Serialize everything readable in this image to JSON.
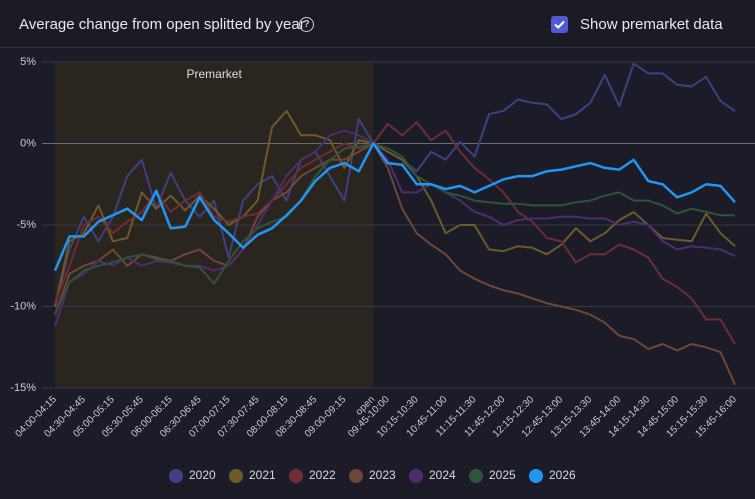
{
  "header": {
    "title": "Average change from open splitted by year",
    "help_icon": "?",
    "checkbox_label": "Show premarket data",
    "checkbox_checked": true
  },
  "chart_data": {
    "type": "line",
    "categories": [
      "04:00-04:15",
      null,
      "04:30-04:45",
      null,
      "05:00-05:15",
      null,
      "05:30-05:45",
      null,
      "06:00-06:15",
      null,
      "06:30-06:45",
      null,
      "07:00-07:15",
      null,
      "07:30-07:45",
      null,
      "08:00-08:15",
      null,
      "08:30-08:45",
      null,
      "09:00-09:15",
      null,
      "open",
      "09:45-10:00",
      null,
      "10:15-10:30",
      null,
      "10:45-11:00",
      null,
      "11:15-11:30",
      null,
      "11:45-12:00",
      null,
      "12:15-12:30",
      null,
      "12:45-13:00",
      null,
      "13:15-13:30",
      null,
      "13:45-14:00",
      null,
      "14:15-14:30",
      null,
      "14:45-15:00",
      null,
      "15:15-15:30",
      null,
      "15:45-16:00"
    ],
    "series": [
      {
        "name": "2020",
        "color": "#3d4180",
        "values": [
          -10,
          -6.5,
          -4.5,
          -6,
          -4.5,
          -2,
          -1,
          -4,
          -1.8,
          -3.5,
          -4.5,
          -3.5,
          -7,
          -3.5,
          -2.5,
          -2,
          -3.5,
          -1,
          -0.5,
          -2,
          -3.5,
          1.5,
          0,
          -0.5,
          -1,
          -1.7,
          -0.5,
          -1,
          0.1,
          -0.8,
          1.8,
          2,
          2.7,
          2.5,
          2.4,
          1.5,
          1.8,
          2.5,
          4.2,
          2.3,
          4.9,
          4.3,
          4.3,
          3.6,
          3.5,
          4.1,
          2.6,
          2
        ]
      },
      {
        "name": "2021",
        "color": "#6e5a28",
        "values": [
          -10,
          -6,
          -5.5,
          -3.8,
          -6,
          -5.8,
          -3,
          -4,
          -3.2,
          -4.1,
          -3.2,
          -4,
          -5,
          -4.5,
          -3.5,
          1,
          2,
          0.5,
          0.5,
          0.2,
          -1.5,
          0.2,
          0,
          -0.5,
          -1,
          -2,
          -3.5,
          -5.5,
          -5,
          -5,
          -6.5,
          -6.6,
          -6.3,
          -6.4,
          -6.8,
          -6.2,
          -5.2,
          -6,
          -5.5,
          -4.7,
          -4.2,
          -5,
          -5.8,
          -5.9,
          -6,
          -4.3,
          -5.5,
          -6.3
        ]
      },
      {
        "name": "2022",
        "color": "#6e2c36",
        "values": [
          -9.8,
          -7.5,
          -5,
          -4.5,
          -5.5,
          -4.8,
          -4.2,
          -3,
          -4.2,
          -3.5,
          -3,
          -4.5,
          -4.8,
          -4.5,
          -4.3,
          -3.5,
          -2.5,
          -1.5,
          -1,
          -0.5,
          0,
          -0.3,
          0,
          1.2,
          0.5,
          1.3,
          0.2,
          0.8,
          -0.5,
          -1.5,
          -2.2,
          -3,
          -4.2,
          -4.8,
          -5.8,
          -6,
          -7.3,
          -6.8,
          -6.8,
          -6.2,
          -6.5,
          -7,
          -8.3,
          -8.8,
          -9.5,
          -10.8,
          -10.8,
          -12.3
        ]
      },
      {
        "name": "2023",
        "color": "#6e4738",
        "values": [
          -10.5,
          -8,
          -7.5,
          -7.2,
          -6.5,
          -7.5,
          -6.8,
          -7,
          -7.2,
          -6.8,
          -6.5,
          -7.2,
          -7.5,
          -6.5,
          -4.5,
          -3.5,
          -3,
          -2,
          -1.5,
          -1,
          -1,
          -0.5,
          0,
          -1.5,
          -4,
          -5.5,
          -6.2,
          -6.8,
          -7.8,
          -8.3,
          -8.7,
          -9,
          -9.2,
          -9.5,
          -9.8,
          -10,
          -10.2,
          -10.5,
          -11,
          -11.8,
          -12,
          -12.6,
          -12.3,
          -12.7,
          -12.3,
          -12.5,
          -12.8,
          -14.8
        ]
      },
      {
        "name": "2024",
        "color": "#4d2c72",
        "values": [
          -11.2,
          -8.5,
          -8,
          -7.2,
          -7.5,
          -7,
          -7.5,
          -7.2,
          -7.3,
          -7.5,
          -7.5,
          -7.8,
          -7.5,
          -6.5,
          -5,
          -3.5,
          -2,
          -1,
          -0.5,
          0.5,
          0.8,
          0.5,
          0,
          -1,
          -3,
          -3,
          -2.5,
          -3,
          -3.5,
          -4.2,
          -4.5,
          -5,
          -4.7,
          -4.6,
          -4.6,
          -4.5,
          -4.5,
          -4.6,
          -4.6,
          -5,
          -4.8,
          -5,
          -6,
          -6.5,
          -6.3,
          -6.4,
          -6.5,
          -6.9
        ]
      },
      {
        "name": "2025",
        "color": "#2d5537",
        "values": [
          -10.5,
          -8.5,
          -7.8,
          -7.5,
          -7.3,
          -7,
          -6.8,
          -7.1,
          -7.2,
          -7.5,
          -7.6,
          -8.6,
          -7.2,
          -6,
          -5.2,
          -4.8,
          -4.5,
          -3.5,
          -2,
          -1,
          -0.3,
          -0.2,
          0,
          -0.3,
          -0.8,
          -2,
          -2.5,
          -3,
          -3.2,
          -3.5,
          -3.6,
          -3.7,
          -3.7,
          -3.8,
          -3.8,
          -3.8,
          -3.6,
          -3.5,
          -3.2,
          -3,
          -3.5,
          -3.5,
          -3.8,
          -4.3,
          -4,
          -4.2,
          -4.4,
          -4.4
        ]
      },
      {
        "name": "2026",
        "color": "#2196f3",
        "values": [
          -7.8,
          -5.7,
          -5.7,
          -4.8,
          -4.4,
          -4,
          -4.7,
          -2.9,
          -5.2,
          -5.1,
          -3.3,
          -4.7,
          -5.5,
          -6.4,
          -5.6,
          -5.2,
          -4.4,
          -3.5,
          -2.3,
          -1.5,
          -1.2,
          -1.7,
          0,
          -1.2,
          -1.3,
          -2.5,
          -2.5,
          -2.8,
          -2.6,
          -3,
          -2.6,
          -2.2,
          -2,
          -2,
          -1.7,
          -1.6,
          -1.4,
          -1.2,
          -1.5,
          -1.6,
          -1,
          -2.3,
          -2.5,
          -3.3,
          -3,
          -2.5,
          -2.6,
          -3.6
        ]
      }
    ],
    "ylim": [
      -15,
      5
    ],
    "yticks": [
      {
        "value": -15,
        "label": "-15%"
      },
      {
        "value": -10,
        "label": "-10%"
      },
      {
        "value": -5,
        "label": "-5%"
      },
      {
        "value": 0,
        "label": "0%"
      },
      {
        "value": 5,
        "label": "5%"
      }
    ],
    "grid": true,
    "annotations": [
      {
        "text": "Premarket",
        "from": "04:00-04:15",
        "to": "open"
      }
    ],
    "legend": "bottom"
  }
}
